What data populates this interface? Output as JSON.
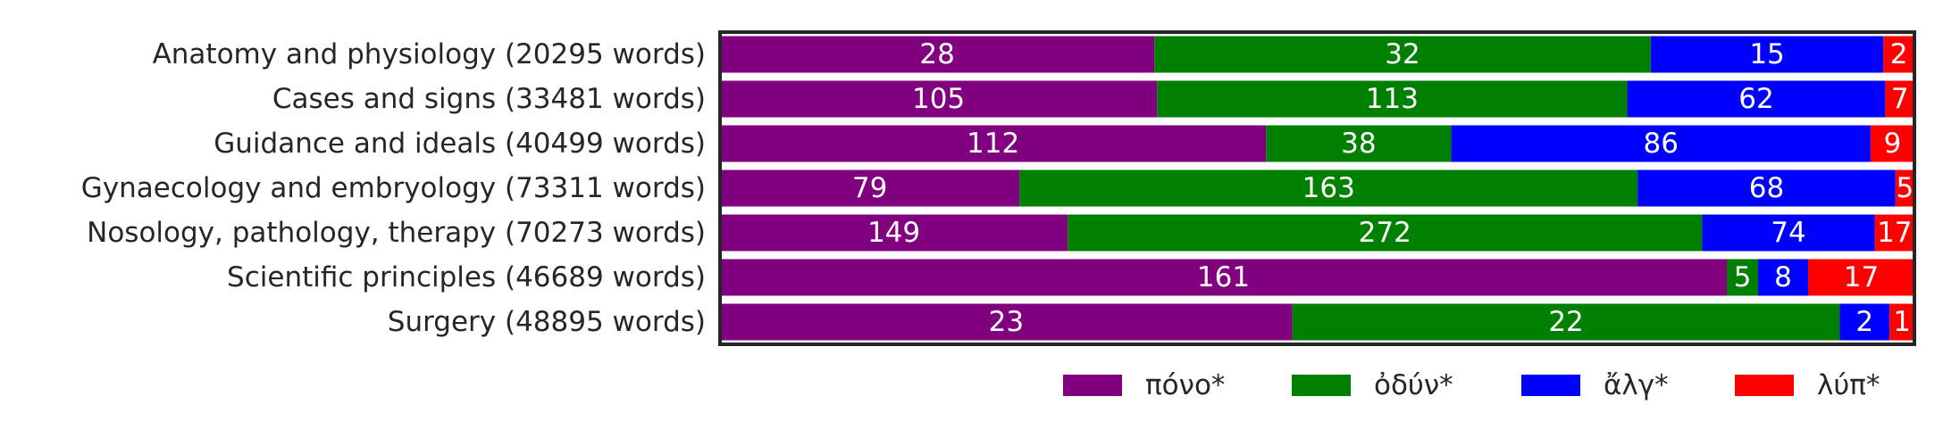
{
  "chart_data": {
    "type": "bar",
    "orientation": "horizontal",
    "stacked": true,
    "normalized": true,
    "categories": [
      "Anatomy and physiology (20295 words)",
      "Cases and signs (33481 words)",
      "Guidance and ideals (40499 words)",
      "Gynaecology and embryology (73311 words)",
      "Nosology, pathology, therapy (70273 words)",
      "Scientific principles (46689 words)",
      "Surgery (48895 words)"
    ],
    "series": [
      {
        "name": "πόνο*",
        "color": "#800080",
        "values": [
          28,
          105,
          112,
          79,
          149,
          161,
          23
        ]
      },
      {
        "name": "ὀδύν*",
        "color": "#008000",
        "values": [
          32,
          113,
          38,
          163,
          272,
          5,
          22
        ]
      },
      {
        "name": "ἄλγ*",
        "color": "#0000ff",
        "values": [
          15,
          62,
          86,
          68,
          74,
          8,
          2
        ]
      },
      {
        "name": "λύπ*",
        "color": "#ff0000",
        "values": [
          2,
          7,
          9,
          5,
          17,
          17,
          1
        ]
      }
    ],
    "title": "",
    "xlabel": "",
    "ylabel": "",
    "grid": false,
    "legend_position": "bottom-right",
    "data_labels": true
  }
}
